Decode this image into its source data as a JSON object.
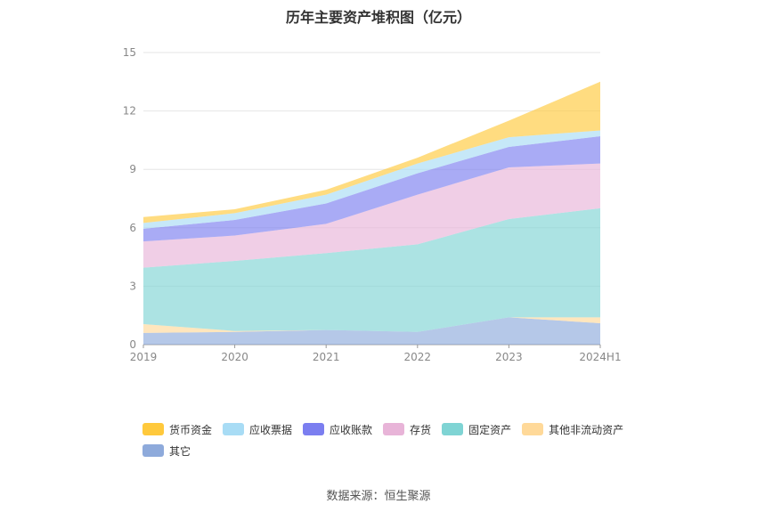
{
  "chart_data": {
    "type": "area",
    "title": "历年主要资产堆积图（亿元）",
    "categories": [
      "2019",
      "2020",
      "2021",
      "2022",
      "2023",
      "2024H1"
    ],
    "ylim": [
      0,
      15
    ],
    "yticks": [
      "0",
      "3",
      "6",
      "9",
      "12",
      "15"
    ],
    "grid": true,
    "legend": "bottom",
    "series": [
      {
        "name": "其它",
        "color": "#8eaadb",
        "values": [
          0.6,
          0.65,
          0.75,
          0.65,
          1.4,
          1.1
        ]
      },
      {
        "name": "其他非流动资产",
        "color": "#ffd999",
        "values": [
          0.45,
          0.05,
          0.0,
          0.0,
          0.0,
          0.3
        ]
      },
      {
        "name": "固定资产",
        "color": "#7fd4d4",
        "values": [
          2.9,
          3.6,
          3.95,
          4.5,
          5.05,
          5.6
        ]
      },
      {
        "name": "存货",
        "color": "#e8b4d8",
        "values": [
          1.35,
          1.3,
          1.5,
          2.55,
          2.65,
          2.3
        ]
      },
      {
        "name": "应收账款",
        "color": "#7b7ef0",
        "values": [
          0.65,
          0.8,
          1.05,
          1.1,
          1.05,
          1.4
        ]
      },
      {
        "name": "应收票据",
        "color": "#a8dcf5",
        "values": [
          0.3,
          0.35,
          0.45,
          0.5,
          0.5,
          0.3
        ]
      },
      {
        "name": "货币资金",
        "color": "#ffc93c",
        "values": [
          0.3,
          0.2,
          0.25,
          0.3,
          0.85,
          2.5
        ]
      }
    ],
    "legend_order": [
      "货币资金",
      "应收票据",
      "应收账款",
      "存货",
      "固定资产",
      "其他非流动资产",
      "其它"
    ]
  },
  "source_label": "数据来源：恒生聚源"
}
